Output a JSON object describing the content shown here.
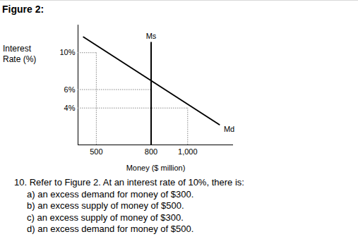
{
  "chart_data": {
    "type": "line",
    "title": "Figure 2:",
    "x_label": "Money ($ million)",
    "y_label": "Interest Rate (%)",
    "xlim": [
      400,
      1250
    ],
    "ylim": [
      0,
      13
    ],
    "xticks": [
      500,
      800,
      {
        "value": 1000,
        "label": "1,000"
      }
    ],
    "yticks": [
      {
        "value": 4,
        "label": "4%"
      },
      {
        "value": 6,
        "label": "6%"
      },
      {
        "value": 10,
        "label": "10%"
      }
    ],
    "series": [
      {
        "name": "Ms",
        "color": "#000000",
        "x": [
          800,
          800
        ],
        "y": [
          0,
          11.1
        ]
      },
      {
        "name": "Md",
        "color": "#000000",
        "x": [
          430,
          1173
        ],
        "y": [
          11.7,
          2.2
        ]
      }
    ],
    "guides": [
      {
        "x": 500,
        "y": 10
      },
      {
        "x": 800,
        "y": 6
      },
      {
        "x": 1000,
        "y": 4
      }
    ]
  },
  "question": {
    "stem": "10. Refer to Figure 2. At an interest rate of 10%, there is:",
    "options": [
      "a) an excess demand for money of $300.",
      "b) an excess supply of money of $500.",
      "c) an excess supply of money of $300.",
      "d) an excess demand for money of $500."
    ]
  }
}
